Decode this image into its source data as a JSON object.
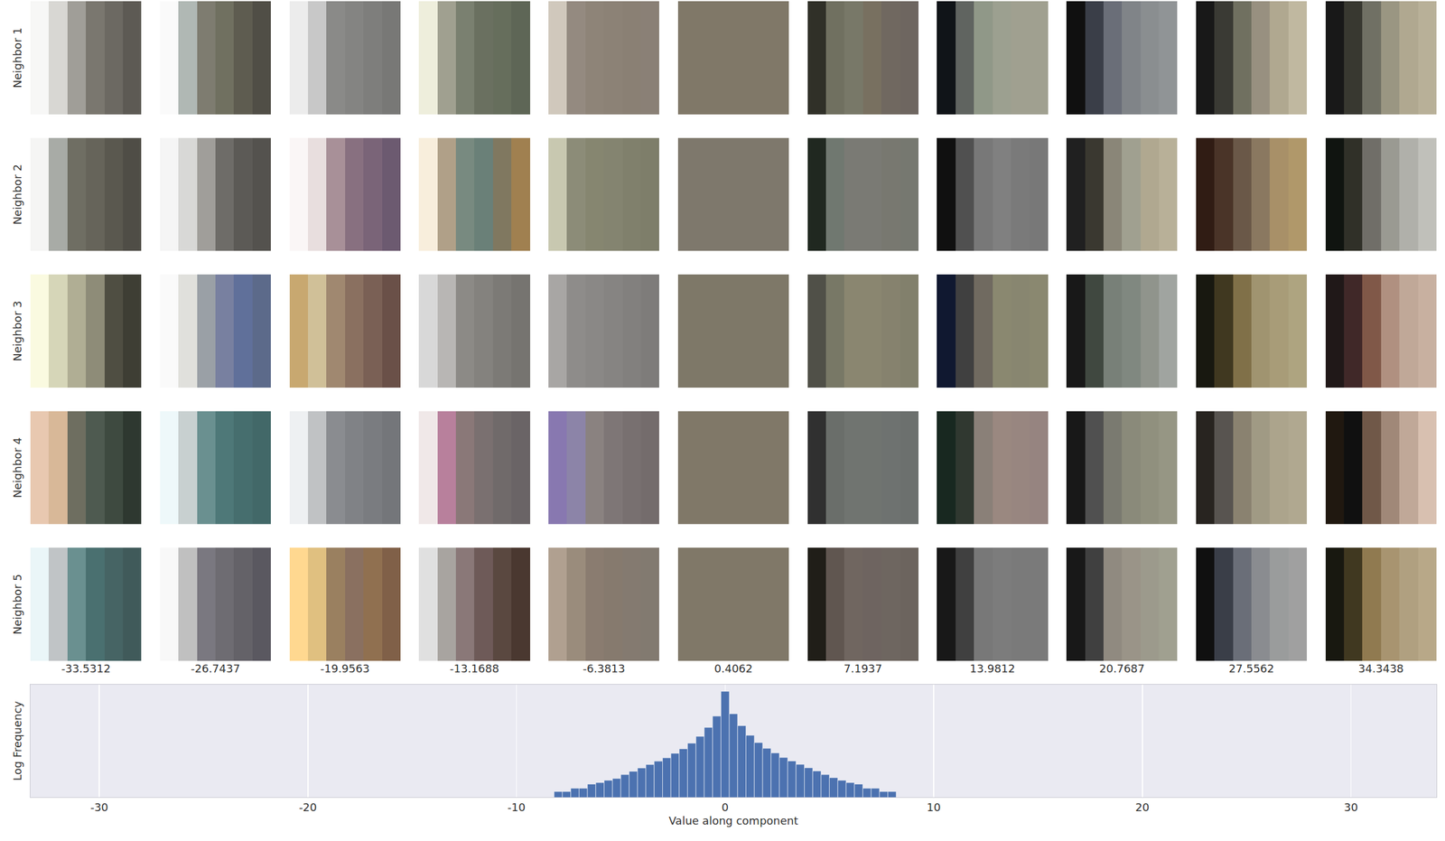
{
  "chart_data": {
    "type": "histogram",
    "x_label": "Value along component",
    "y_label": "Log Frequency",
    "bins": [
      -8.2,
      -7.8,
      -7.4,
      -7.0,
      -6.6,
      -6.2,
      -5.8,
      -5.4,
      -5.0,
      -4.6,
      -4.2,
      -3.8,
      -3.4,
      -3.0,
      -2.6,
      -2.2,
      -1.8,
      -1.4,
      -1.0,
      -0.6,
      -0.2,
      0.2,
      0.6,
      1.0,
      1.4,
      1.8,
      2.2,
      2.6,
      3.0,
      3.4,
      3.8,
      4.2,
      4.6,
      5.0,
      5.4,
      5.8,
      6.2,
      6.6,
      7.0,
      7.4,
      7.8,
      8.2
    ],
    "counts": [
      2,
      2,
      3,
      3,
      5,
      6,
      8,
      10,
      16,
      24,
      36,
      55,
      83,
      126,
      218,
      380,
      759,
      1740,
      5250,
      20900,
      436000,
      28000,
      6500,
      2000,
      820,
      400,
      230,
      130,
      85,
      56,
      37,
      25,
      16,
      11,
      8,
      6,
      5,
      3,
      3,
      2,
      2
    ],
    "color": "#4c72b0",
    "xlim": [
      -33.3,
      34.1
    ],
    "xticks": [
      -30,
      -20,
      -10,
      0,
      10,
      20,
      30
    ],
    "ylim": [
      1,
      1000000
    ],
    "log": "y",
    "grid": "x",
    "tick_labels": "x",
    "patches": {
      "row_labels": [
        "Neighbor 1",
        "Neighbor 2",
        "Neighbor 3",
        "Neighbor 4",
        "Neighbor 5"
      ],
      "column_labels": [
        -33.5312,
        -26.7437,
        -19.9563,
        -13.1688,
        -6.3813,
        0.4062,
        7.1937,
        13.9812,
        20.7687,
        27.5562,
        34.3438
      ],
      "cells": [
        [
          [
            "#f7f7f6",
            "#d8d7d3",
            "#a09e98",
            "#7a776f",
            "#6c6962",
            "#5d5a54"
          ],
          [
            "#fafafa",
            "#b0b8b4",
            "#7e7c70",
            "#707060",
            "#5e5c50",
            "#504e46"
          ],
          [
            "#ececec",
            "#c8c8c8",
            "#8a8a88",
            "#848482",
            "#7e7e7c",
            "#787876"
          ],
          [
            "#eeeedc",
            "#a0a090",
            "#7a8070",
            "#6a7060",
            "#666e5c",
            "#5e6656"
          ],
          [
            "#d0c8bc",
            "#948a80",
            "#8e8478",
            "#8c8276",
            "#8a8074",
            "#8a8076"
          ],
          [
            "#807868",
            "#807868",
            "#807868",
            "#807868",
            "#807868",
            "#807868"
          ],
          [
            "#303028",
            "#707060",
            "#787868",
            "#787060",
            "#706860",
            "#6e6660"
          ],
          [
            "#101418",
            "#606460",
            "#909888",
            "#9ca090",
            "#a0a090",
            "#a0a090"
          ],
          [
            "#101010",
            "#3a3e48",
            "#6a6e78",
            "#808488",
            "#8a8e90",
            "#909496"
          ],
          [
            "#181818",
            "#3a3a34",
            "#707060",
            "#989080",
            "#b0a890",
            "#c0b8a0"
          ],
          [
            "#181818",
            "#383830",
            "#707064",
            "#9a9682",
            "#b0a890",
            "#b8b098"
          ]
        ],
        [
          [
            "#f5f5f4",
            "#a8aba6",
            "#6f6e63",
            "#66645a",
            "#5a584f",
            "#4f4d46"
          ],
          [
            "#f5f5f5",
            "#d8d8d6",
            "#a09e9a",
            "#6e6c68",
            "#5c5a56",
            "#54524e"
          ],
          [
            "#faf6f6",
            "#e8dede",
            "#a89098",
            "#887080",
            "#7a6478",
            "#6c5a70"
          ],
          [
            "#f8eedc",
            "#b0a088",
            "#788a80",
            "#6a8078",
            "#807860",
            "#a08050"
          ],
          [
            "#c8c8b0",
            "#8c8c78",
            "#868670",
            "#848470",
            "#80806c",
            "#7e7e6a"
          ],
          [
            "#7e786c",
            "#7e786c",
            "#7e786c",
            "#7e786c",
            "#7e786c",
            "#7e786c"
          ],
          [
            "#202820",
            "#707870",
            "#7a7a74",
            "#7a7a74",
            "#787870",
            "#767870"
          ],
          [
            "#101010",
            "#505050",
            "#787878",
            "#808080",
            "#7a7a7a",
            "#787878"
          ],
          [
            "#202020",
            "#3a3830",
            "#8a8678",
            "#a0a090",
            "#b0a890",
            "#b8b098"
          ],
          [
            "#301c14",
            "#4a3428",
            "#6a5848",
            "#8a7860",
            "#a89068",
            "#b0986a"
          ],
          [
            "#101410",
            "#303028",
            "#706e68",
            "#9a9a92",
            "#b0b0aa",
            "#c0c0ba"
          ]
        ],
        [
          [
            "#fafae0",
            "#d6d6b8",
            "#b0ae94",
            "#8e8c78",
            "#4f4e42",
            "#3e3e34"
          ],
          [
            "#fafafa",
            "#e0e0dc",
            "#9aa0a6",
            "#7880a0",
            "#60709a",
            "#5c6a8a"
          ],
          [
            "#c8a870",
            "#d0c098",
            "#a08870",
            "#8a7060",
            "#7a6055",
            "#6a5048"
          ],
          [
            "#d8d8d8",
            "#b8b6b4",
            "#8c8a86",
            "#84827e",
            "#7c7a76",
            "#767470"
          ],
          [
            "#a8a6a4",
            "#8e8c8a",
            "#8a8886",
            "#868482",
            "#82807e",
            "#7e7c7a"
          ],
          [
            "#7e7868",
            "#7e7868",
            "#7e7868",
            "#7e7868",
            "#7e7868",
            "#7e7868"
          ],
          [
            "#505048",
            "#787866",
            "#8a8670",
            "#8a8670",
            "#86826e",
            "#82806c"
          ],
          [
            "#101830",
            "#404040",
            "#706a60",
            "#8a8870",
            "#888670",
            "#8a8870"
          ],
          [
            "#181818",
            "#404840",
            "#788078",
            "#808880",
            "#90948c",
            "#a0a4a0"
          ],
          [
            "#181810",
            "#403820",
            "#807048",
            "#a09470",
            "#a89c78",
            "#aea480"
          ],
          [
            "#201818",
            "#402828",
            "#805848",
            "#b09080",
            "#c0a898",
            "#c8b0a0"
          ]
        ],
        [
          [
            "#e8c8b0",
            "#d8b898",
            "#6e6e60",
            "#4e5a50",
            "#3e4a40",
            "#2e3830"
          ],
          [
            "#eef8fa",
            "#c8d0d0",
            "#6a9090",
            "#4e7878",
            "#466e6e",
            "#426868"
          ],
          [
            "#eef0f2",
            "#c0c2c4",
            "#8a8c90",
            "#808286",
            "#7a7c80",
            "#74767a"
          ],
          [
            "#f0e8e8",
            "#b8809c",
            "#8a7878",
            "#7a7070",
            "#706a6a",
            "#6a6466"
          ],
          [
            "#8878b0",
            "#8c84a8",
            "#8a8280",
            "#7e7676",
            "#787070",
            "#746c6c"
          ],
          [
            "#807868",
            "#807868",
            "#807868",
            "#807868",
            "#807868",
            "#807868"
          ],
          [
            "#303030",
            "#6a6e6a",
            "#707470",
            "#707470",
            "#6e7270",
            "#6c706e"
          ],
          [
            "#182820",
            "#303830",
            "#8a8078",
            "#9a8880",
            "#988680",
            "#968480"
          ],
          [
            "#181818",
            "#505050",
            "#7a7a70",
            "#8a8a7a",
            "#90907e",
            "#969684"
          ],
          [
            "#282420",
            "#585450",
            "#8a8270",
            "#a09a84",
            "#aca48c",
            "#b0a890"
          ],
          [
            "#201810",
            "#101010",
            "#705848",
            "#a08878",
            "#c0a898",
            "#d8c0b0"
          ]
        ],
        [
          [
            "#eaf6f8",
            "#c0c4c6",
            "#6a9090",
            "#4a7070",
            "#466464",
            "#405a5a"
          ],
          [
            "#f8f8f8",
            "#c0c0c0",
            "#7a7880",
            "#6e6c72",
            "#646268",
            "#5a5860"
          ],
          [
            "#ffd890",
            "#e0c080",
            "#9a8060",
            "#8a7060",
            "#907050",
            "#806048"
          ],
          [
            "#e0e0e0",
            "#a8a4a0",
            "#8a7878",
            "#6e5a58",
            "#5a4840",
            "#4a3830"
          ],
          [
            "#b0a090",
            "#9a8c7c",
            "#8a7c70",
            "#867a6e",
            "#847a70",
            "#827a70"
          ],
          [
            "#807868",
            "#807868",
            "#807868",
            "#807868",
            "#807868",
            "#807868"
          ],
          [
            "#201e18",
            "#605650",
            "#706660",
            "#6e6460",
            "#6e6660",
            "#6c645e"
          ],
          [
            "#181818",
            "#404040",
            "#787878",
            "#7c7c7c",
            "#7a7a7a",
            "#7a7a7a"
          ],
          [
            "#181818",
            "#404040",
            "#908a80",
            "#9a9488",
            "#9c9a8c",
            "#a0a090"
          ],
          [
            "#101010",
            "#3a3e48",
            "#6a6e78",
            "#8a8c90",
            "#9a9c9c",
            "#a0a0a0"
          ],
          [
            "#181810",
            "#403820",
            "#907a50",
            "#a89470",
            "#b0a080",
            "#b8a888"
          ]
        ]
      ]
    }
  }
}
